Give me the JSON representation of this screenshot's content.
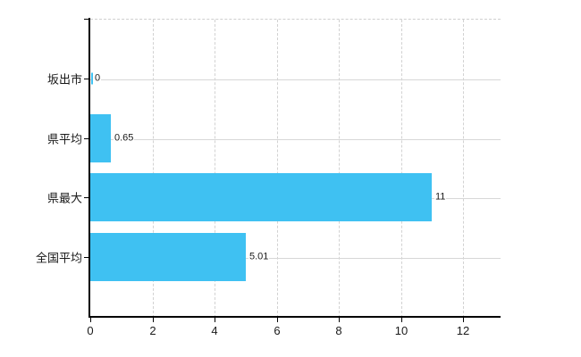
{
  "chart_data": {
    "type": "bar",
    "orientation": "horizontal",
    "title": "",
    "xlabel": "",
    "ylabel": "",
    "categories": [
      "坂出市",
      "県平均",
      "県最大",
      "全国平均"
    ],
    "values": [
      0,
      0.65,
      11,
      5.01
    ],
    "value_labels": [
      "0",
      "0.65",
      "11",
      "5.01"
    ],
    "x_tick_labels": [
      "0",
      "2",
      "4",
      "6",
      "8",
      "10",
      "12"
    ],
    "x_tick_values": [
      0,
      2,
      4,
      6,
      8,
      10,
      12
    ],
    "xlim": [
      0,
      13.2
    ],
    "grid": true,
    "legend_position": "none",
    "colors": {
      "bar": "#3FC1F2",
      "grid_solid": "#d7d7d7",
      "grid_dashed": "#d2d2d2",
      "axis": "#000000",
      "text": "#1a1a1a",
      "background": "#ffffff"
    }
  }
}
